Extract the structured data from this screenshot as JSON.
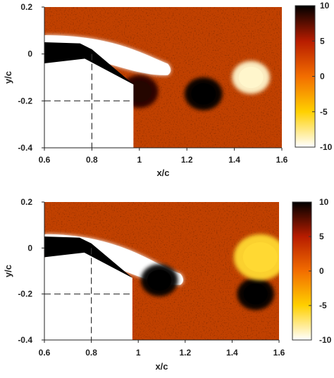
{
  "chart_data": [
    {
      "type": "heatmap",
      "title": "",
      "xlabel": "x/c",
      "ylabel": "y/c",
      "xlim": [
        0.6,
        1.6
      ],
      "ylim": [
        -0.4,
        0.2
      ],
      "x_ticks": [
        "0.6",
        "0.8",
        "1",
        "1.2",
        "1.4",
        "1.6"
      ],
      "y_ticks": [
        "0.2",
        "0",
        "-0.2",
        "-0.4"
      ],
      "colorbar": {
        "ticks": [
          "10",
          "5",
          "0",
          "-5",
          "-10"
        ],
        "range": [
          -10,
          10
        ],
        "colors": [
          "#000000",
          "#b71c00",
          "#f26d00",
          "#ffd000",
          "#ffffff"
        ]
      },
      "background_value": 1.5,
      "guide_lines": {
        "x": 0.8,
        "y": -0.2
      },
      "structures": [
        {
          "kind": "shear-layer",
          "value": -10,
          "x_range": [
            0.6,
            1.12
          ],
          "y_start": 0.05,
          "y_end": -0.06
        },
        {
          "kind": "vortex",
          "value": 9,
          "x": 1.0,
          "y": -0.16
        },
        {
          "kind": "vortex",
          "value": 10,
          "x": 1.27,
          "y": -0.17
        },
        {
          "kind": "vortex",
          "value": -9,
          "x": 1.47,
          "y": -0.1
        }
      ]
    },
    {
      "type": "heatmap",
      "title": "",
      "xlabel": "x/c",
      "ylabel": "y/c",
      "xlim": [
        0.6,
        1.6
      ],
      "ylim": [
        -0.4,
        0.2
      ],
      "x_ticks": [
        "0.6",
        "0.8",
        "1",
        "1.2",
        "1.4",
        "1.6"
      ],
      "y_ticks": [
        "0.2",
        "0",
        "-0.2",
        "-0.4"
      ],
      "colorbar": {
        "ticks": [
          "10",
          "5",
          "0",
          "-5",
          "-10"
        ],
        "range": [
          -10,
          10
        ],
        "colors": [
          "#000000",
          "#b71c00",
          "#f26d00",
          "#ffd000",
          "#ffffff"
        ]
      },
      "background_value": 1.5,
      "guide_lines": {
        "x": 0.8,
        "y": -0.2
      },
      "structures": [
        {
          "kind": "shear-layer",
          "value": -10,
          "x_range": [
            0.6,
            1.18
          ],
          "y_start": 0.03,
          "y_end": -0.13
        },
        {
          "kind": "vortex",
          "value": 10,
          "x": 1.09,
          "y": -0.14
        },
        {
          "kind": "vortex",
          "value": 10,
          "x": 1.5,
          "y": -0.2
        },
        {
          "kind": "turbulent-patch",
          "value": -6,
          "x": 1.52,
          "y": -0.04
        }
      ]
    }
  ]
}
